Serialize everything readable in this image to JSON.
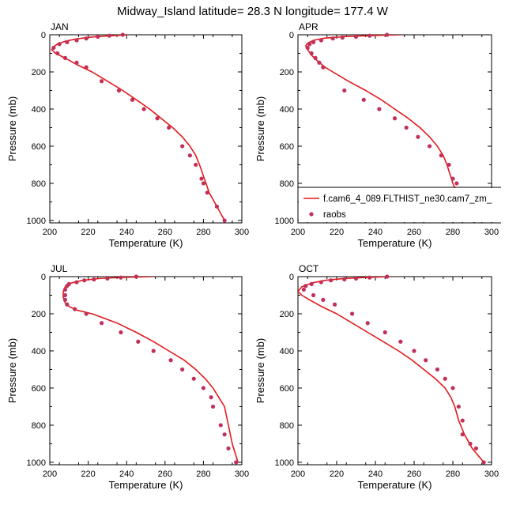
{
  "figure_title": "Midway_Island  latitude= 28.3 N longitude= 177.4 W",
  "legend": {
    "model_label": "f.cam6_4_089.FLTHIST_ne30.cam7_zm_",
    "obs_label": "raobs",
    "model_color": "#e31a1c",
    "obs_color": "#c2305a"
  },
  "chart_data": [
    {
      "type": "line",
      "panel": "JAN",
      "title": "JAN",
      "xlabel": "Temperature (K)",
      "ylabel": "Pressure (mb)",
      "xlim": [
        200,
        300
      ],
      "ylim": [
        1013,
        0
      ],
      "xticks": [
        200,
        220,
        240,
        260,
        280,
        300
      ],
      "yticks": [
        0,
        200,
        400,
        600,
        800,
        1000
      ],
      "series": [
        {
          "name": "f.cam6_4_089.FLTHIST_ne30.cam7_zm_",
          "kind": "line",
          "x": [
            241,
            232,
            222,
            214,
            208,
            204,
            202,
            201,
            203,
            208,
            214,
            222,
            230,
            238,
            245,
            252,
            258,
            264,
            269,
            273,
            276,
            278,
            283,
            287,
            291
          ],
          "y": [
            0,
            5,
            12,
            22,
            35,
            50,
            65,
            80,
            100,
            125,
            160,
            200,
            250,
            300,
            350,
            400,
            450,
            500,
            550,
            600,
            650,
            700,
            850,
            925,
            1000
          ]
        },
        {
          "name": "raobs",
          "kind": "scatter",
          "x": [
            238,
            231,
            225,
            219,
            214,
            209,
            205,
            202,
            204,
            208,
            214,
            219,
            227,
            236,
            243,
            249,
            256,
            262,
            269,
            273,
            276,
            279,
            280,
            282,
            287,
            291
          ],
          "y": [
            0,
            5,
            10,
            20,
            30,
            40,
            50,
            70,
            100,
            125,
            150,
            175,
            250,
            300,
            350,
            400,
            450,
            500,
            600,
            650,
            700,
            775,
            800,
            850,
            925,
            1000
          ]
        }
      ]
    },
    {
      "type": "line",
      "panel": "APR",
      "title": "APR",
      "xlabel": "Temperature (K)",
      "ylabel": "Pressure (mb)",
      "xlim": [
        200,
        300
      ],
      "ylim": [
        1013,
        0
      ],
      "xticks": [
        200,
        220,
        240,
        260,
        280,
        300
      ],
      "yticks": [
        0,
        200,
        400,
        600,
        800,
        1000
      ],
      "series": [
        {
          "name": "f.cam6_4_089.FLTHIST_ne30.cam7_zm_",
          "kind": "line",
          "x": [
            254,
            238,
            224,
            214,
            208,
            205,
            204,
            205,
            207,
            210,
            214,
            218,
            226,
            235,
            243,
            250,
            257,
            263,
            268,
            272,
            275,
            277,
            280,
            282,
            287,
            291
          ],
          "y": [
            0,
            4,
            10,
            18,
            30,
            45,
            60,
            80,
            110,
            140,
            175,
            200,
            250,
            300,
            350,
            400,
            450,
            500,
            550,
            600,
            650,
            700,
            800,
            850,
            925,
            1000
          ]
        },
        {
          "name": "raobs",
          "kind": "scatter",
          "x": [
            246,
            237,
            230,
            223,
            218,
            212,
            208,
            206,
            205,
            207,
            209,
            211,
            213,
            224,
            234,
            242,
            250,
            256,
            262,
            268,
            274,
            278,
            280,
            282,
            283,
            283,
            287,
            291
          ],
          "y": [
            0,
            5,
            10,
            15,
            20,
            30,
            40,
            50,
            70,
            100,
            125,
            150,
            175,
            300,
            350,
            400,
            450,
            500,
            550,
            600,
            650,
            700,
            775,
            800,
            850,
            900,
            925,
            1000
          ]
        }
      ]
    },
    {
      "type": "line",
      "panel": "JUL",
      "title": "JUL",
      "xlabel": "Temperature (K)",
      "ylabel": "Pressure (mb)",
      "xlim": [
        200,
        300
      ],
      "ylim": [
        1013,
        0
      ],
      "xticks": [
        200,
        220,
        240,
        260,
        280,
        300
      ],
      "yticks": [
        0,
        200,
        400,
        600,
        800,
        1000
      ],
      "series": [
        {
          "name": "f.cam6_4_089.FLTHIST_ne30.cam7_zm_",
          "kind": "line",
          "x": [
            254,
            238,
            226,
            217,
            211,
            208,
            207,
            207,
            208,
            210,
            214,
            222,
            235,
            245,
            254,
            262,
            270,
            276,
            281,
            285,
            288,
            291,
            293,
            295,
            298
          ],
          "y": [
            0,
            4,
            10,
            20,
            35,
            55,
            80,
            110,
            140,
            160,
            180,
            200,
            250,
            300,
            350,
            400,
            450,
            500,
            550,
            600,
            650,
            700,
            800,
            900,
            1000
          ]
        },
        {
          "name": "raobs",
          "kind": "scatter",
          "x": [
            245,
            237,
            230,
            223,
            218,
            214,
            210,
            209,
            208,
            208,
            208,
            209,
            213,
            219,
            227,
            237,
            246,
            254,
            263,
            269,
            275,
            280,
            284,
            285,
            289,
            291,
            293,
            297
          ],
          "y": [
            0,
            5,
            10,
            15,
            20,
            30,
            40,
            50,
            70,
            100,
            125,
            150,
            175,
            200,
            250,
            300,
            350,
            400,
            450,
            500,
            550,
            600,
            650,
            700,
            800,
            850,
            925,
            1000
          ]
        }
      ]
    },
    {
      "type": "line",
      "panel": "OCT",
      "title": "OCT",
      "xlabel": "Temperature (K)",
      "ylabel": "Pressure (mb)",
      "xlim": [
        200,
        300
      ],
      "ylim": [
        1013,
        0
      ],
      "xticks": [
        200,
        220,
        240,
        260,
        280,
        300
      ],
      "yticks": [
        0,
        200,
        400,
        600,
        800,
        1000
      ],
      "series": [
        {
          "name": "f.cam6_4_089.FLTHIST_ne30.cam7_zm_",
          "kind": "line",
          "x": [
            248,
            236,
            224,
            214,
            207,
            202,
            200,
            202,
            206,
            212,
            220,
            228,
            236,
            244,
            252,
            259,
            265,
            271,
            276,
            279,
            281,
            283,
            286,
            290,
            296
          ],
          "y": [
            0,
            4,
            10,
            20,
            35,
            55,
            80,
            100,
            125,
            160,
            200,
            250,
            300,
            350,
            400,
            450,
            500,
            550,
            600,
            650,
            700,
            775,
            850,
            925,
            1000
          ]
        },
        {
          "name": "raobs",
          "kind": "scatter",
          "x": [
            246,
            237,
            230,
            224,
            217,
            212,
            207,
            204,
            203,
            208,
            213,
            219,
            228,
            236,
            245,
            253,
            260,
            266,
            272,
            276,
            280,
            283,
            285,
            285,
            289,
            292,
            296
          ],
          "y": [
            0,
            5,
            10,
            15,
            20,
            30,
            40,
            50,
            70,
            100,
            125,
            150,
            200,
            250,
            300,
            350,
            400,
            450,
            500,
            550,
            600,
            700,
            775,
            850,
            900,
            925,
            1000
          ]
        }
      ]
    }
  ]
}
